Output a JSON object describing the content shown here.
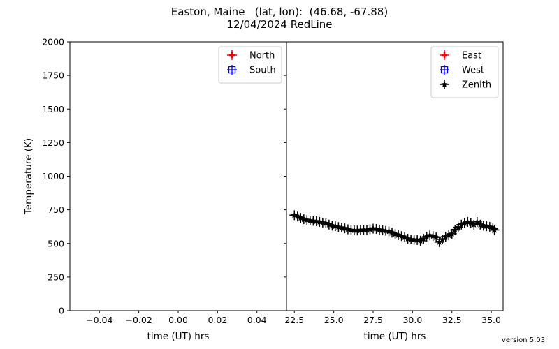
{
  "figure": {
    "title_line1": "Easton, Maine   (lat, lon):  (46.68, -67.88)",
    "title_line2": "12/04/2024 RedLine",
    "version": "version 5.03"
  },
  "chart_data": [
    {
      "type": "scatter",
      "panel": "left",
      "xlabel": "time (UT) hrs",
      "ylabel": "Temperature (K)",
      "xlim": [
        -0.055,
        0.055
      ],
      "ylim": [
        0,
        2000
      ],
      "x_ticks": [
        -0.04,
        -0.02,
        0.0,
        0.02,
        0.04
      ],
      "x_tick_labels": [
        "−0.04",
        "−0.02",
        "0.00",
        "0.02",
        "0.04"
      ],
      "y_ticks": [
        0,
        250,
        500,
        750,
        1000,
        1250,
        1500,
        1750,
        2000
      ],
      "grid": false,
      "legend_position": "top-right",
      "series": [
        {
          "name": "North",
          "color": "#ff0000",
          "marker": "plus-errorbar",
          "x": [],
          "y": []
        },
        {
          "name": "South",
          "color": "#0000ff",
          "marker": "square-plus",
          "x": [],
          "y": []
        }
      ]
    },
    {
      "type": "scatter",
      "panel": "right",
      "xlabel": "time (UT) hrs",
      "ylabel": "",
      "xlim": [
        22.0,
        35.75
      ],
      "ylim": [
        0,
        2000
      ],
      "x_ticks": [
        22.5,
        25.0,
        27.5,
        30.0,
        32.5,
        35.0
      ],
      "x_tick_labels": [
        "22.5",
        "25.0",
        "27.5",
        "30.0",
        "32.5",
        "35.0"
      ],
      "y_ticks": [
        0,
        250,
        500,
        750,
        1000,
        1250,
        1500,
        1750,
        2000
      ],
      "grid": false,
      "legend_position": "top-right",
      "series": [
        {
          "name": "East",
          "color": "#ff0000",
          "marker": "plus-errorbar",
          "x": [],
          "y": []
        },
        {
          "name": "West",
          "color": "#0000ff",
          "marker": "square-plus",
          "x": [],
          "y": []
        },
        {
          "name": "Zenith",
          "color": "#000000",
          "marker": "star-errorbar",
          "x": [
            22.5,
            22.7,
            22.9,
            23.1,
            23.3,
            23.5,
            23.7,
            23.9,
            24.1,
            24.3,
            24.5,
            24.7,
            24.9,
            25.1,
            25.3,
            25.5,
            25.7,
            25.9,
            26.1,
            26.3,
            26.5,
            26.7,
            26.9,
            27.1,
            27.3,
            27.5,
            27.7,
            27.9,
            28.1,
            28.3,
            28.5,
            28.7,
            28.9,
            29.1,
            29.3,
            29.5,
            29.7,
            29.9,
            30.1,
            30.3,
            30.5,
            30.7,
            30.9,
            31.1,
            31.3,
            31.5,
            31.7,
            31.9,
            32.1,
            32.3,
            32.5,
            32.7,
            32.9,
            33.1,
            33.3,
            33.5,
            33.7,
            33.9,
            34.1,
            34.3,
            34.5,
            34.7,
            34.9,
            35.1,
            35.2
          ],
          "y": [
            710,
            700,
            690,
            680,
            675,
            670,
            668,
            665,
            660,
            655,
            650,
            640,
            632,
            628,
            622,
            618,
            612,
            605,
            600,
            598,
            596,
            600,
            602,
            600,
            605,
            610,
            608,
            602,
            598,
            594,
            590,
            580,
            570,
            562,
            555,
            545,
            535,
            530,
            528,
            525,
            520,
            535,
            550,
            560,
            555,
            545,
            510,
            530,
            550,
            560,
            572,
            600,
            620,
            640,
            650,
            660,
            650,
            640,
            660,
            640,
            632,
            628,
            624,
            612,
            600
          ]
        }
      ]
    }
  ]
}
